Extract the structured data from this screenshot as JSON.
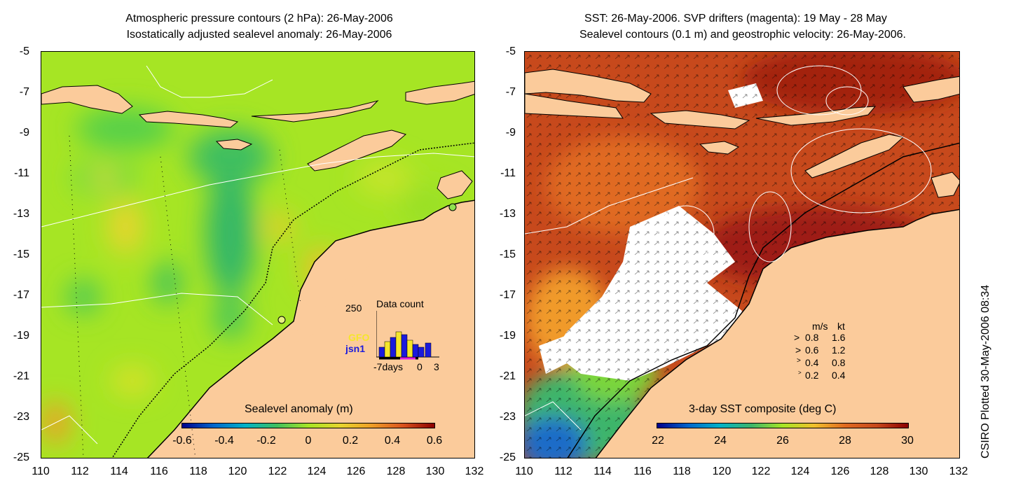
{
  "left": {
    "title_line1": "Atmospheric pressure contours (2 hPa): 26-May-2006",
    "title_line2": "Isostatically adjusted sealevel anomaly: 26-May-2006",
    "colorbar_label": "Sealevel anomaly (m)",
    "colorbar_ticks": [
      "-0.6",
      "-0.4",
      "-0.2",
      "0",
      "0.2",
      "0.4",
      "0.6"
    ],
    "inset": {
      "title": "Data count",
      "ymax_label": "250",
      "series": [
        {
          "name": "GFO",
          "color": "#f5e62a"
        },
        {
          "name": "jsn1",
          "color": "#1a1adc"
        }
      ],
      "x_labels": [
        "-7days",
        "0",
        "3"
      ]
    }
  },
  "right": {
    "title_line1": "SST: 26-May-2006. SVP drifters (magenta): 19 May - 28 May",
    "title_line2": "Sealevel contours (0.1 m) and geostrophic velocity: 26-May-2006.",
    "colorbar_label": "3-day SST composite (deg C)",
    "colorbar_ticks": [
      "22",
      "24",
      "26",
      "28",
      "30"
    ],
    "legend": {
      "header_ms": "m/s",
      "header_kt": "kt",
      "rows": [
        {
          "ms": "0.8",
          "kt": "1.6"
        },
        {
          "ms": "0.6",
          "kt": "1.2"
        },
        {
          "ms": "0.4",
          "kt": "0.8"
        },
        {
          "ms": "0.2",
          "kt": "0.4"
        }
      ]
    }
  },
  "axes": {
    "y_ticks": [
      "-5",
      "-7",
      "-9",
      "-11",
      "-13",
      "-15",
      "-17",
      "-19",
      "-21",
      "-23",
      "-25"
    ],
    "x_ticks": [
      "110",
      "112",
      "114",
      "116",
      "118",
      "120",
      "122",
      "124",
      "126",
      "128",
      "130",
      "132"
    ]
  },
  "credit": "CSIRO Plotted 30-May-2006 08:34",
  "colors": {
    "land": "#fbcb9b",
    "sla_mid": "#8ee22a",
    "sst_warm": "#c0391b",
    "sst_hot": "#9e1c12"
  }
}
